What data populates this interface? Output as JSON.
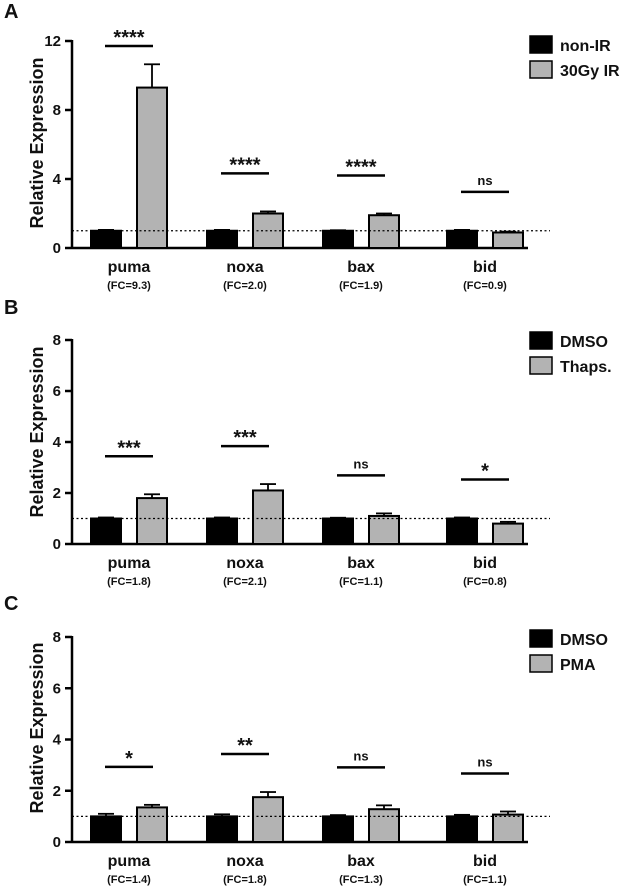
{
  "figure": {
    "panels": [
      "A",
      "B",
      "C"
    ]
  },
  "chart_data": [
    {
      "type": "bar",
      "panel": "A",
      "ylabel": "Relative Expression",
      "ylim": [
        0,
        12
      ],
      "yticks": [
        0,
        4,
        8,
        12
      ],
      "reference_line": 1,
      "categories": [
        "puma",
        "noxa",
        "bax",
        "bid"
      ],
      "fold_change_labels": [
        "(FC=9.3)",
        "(FC=2.0)",
        "(FC=1.9)",
        "(FC=0.9)"
      ],
      "significance": [
        "****",
        "****",
        "****",
        "ns"
      ],
      "series": [
        {
          "name": "non-IR",
          "color": "#000000",
          "values": [
            1.0,
            1.0,
            1.0,
            1.0
          ],
          "errors": [
            0.05,
            0.05,
            0.03,
            0.05
          ]
        },
        {
          "name": "30Gy IR",
          "color": "#b3b3b3",
          "values": [
            9.3,
            2.0,
            1.9,
            0.9
          ],
          "errors": [
            1.35,
            0.12,
            0.1,
            0.05
          ]
        }
      ]
    },
    {
      "type": "bar",
      "panel": "B",
      "ylabel": "Relative Expression",
      "ylim": [
        0,
        8
      ],
      "yticks": [
        0,
        2,
        4,
        6,
        8
      ],
      "reference_line": 1,
      "categories": [
        "puma",
        "noxa",
        "bax",
        "bid"
      ],
      "fold_change_labels": [
        "(FC=1.8)",
        "(FC=2.1)",
        "(FC=1.1)",
        "(FC=0.8)"
      ],
      "significance": [
        "***",
        "***",
        "ns",
        "*"
      ],
      "series": [
        {
          "name": "DMSO",
          "color": "#000000",
          "values": [
            1.0,
            1.0,
            1.0,
            1.0
          ],
          "errors": [
            0.04,
            0.04,
            0.03,
            0.04
          ]
        },
        {
          "name": "Thaps.",
          "color": "#b3b3b3",
          "values": [
            1.8,
            2.1,
            1.1,
            0.8
          ],
          "errors": [
            0.15,
            0.25,
            0.1,
            0.07
          ]
        }
      ]
    },
    {
      "type": "bar",
      "panel": "C",
      "ylabel": "Relative Expression",
      "ylim": [
        0,
        8
      ],
      "yticks": [
        0,
        2,
        4,
        6,
        8
      ],
      "reference_line": 1,
      "categories": [
        "puma",
        "noxa",
        "bax",
        "bid"
      ],
      "fold_change_labels": [
        "(FC=1.4)",
        "(FC=1.8)",
        "(FC=1.3)",
        "(FC=1.1)"
      ],
      "significance": [
        "*",
        "**",
        "ns",
        "ns"
      ],
      "series": [
        {
          "name": "DMSO",
          "color": "#000000",
          "values": [
            1.0,
            1.0,
            1.0,
            1.0
          ],
          "errors": [
            0.1,
            0.08,
            0.05,
            0.06
          ]
        },
        {
          "name": "PMA",
          "color": "#b3b3b3",
          "values": [
            1.35,
            1.75,
            1.28,
            1.07
          ],
          "errors": [
            0.1,
            0.2,
            0.15,
            0.12
          ]
        }
      ]
    }
  ]
}
